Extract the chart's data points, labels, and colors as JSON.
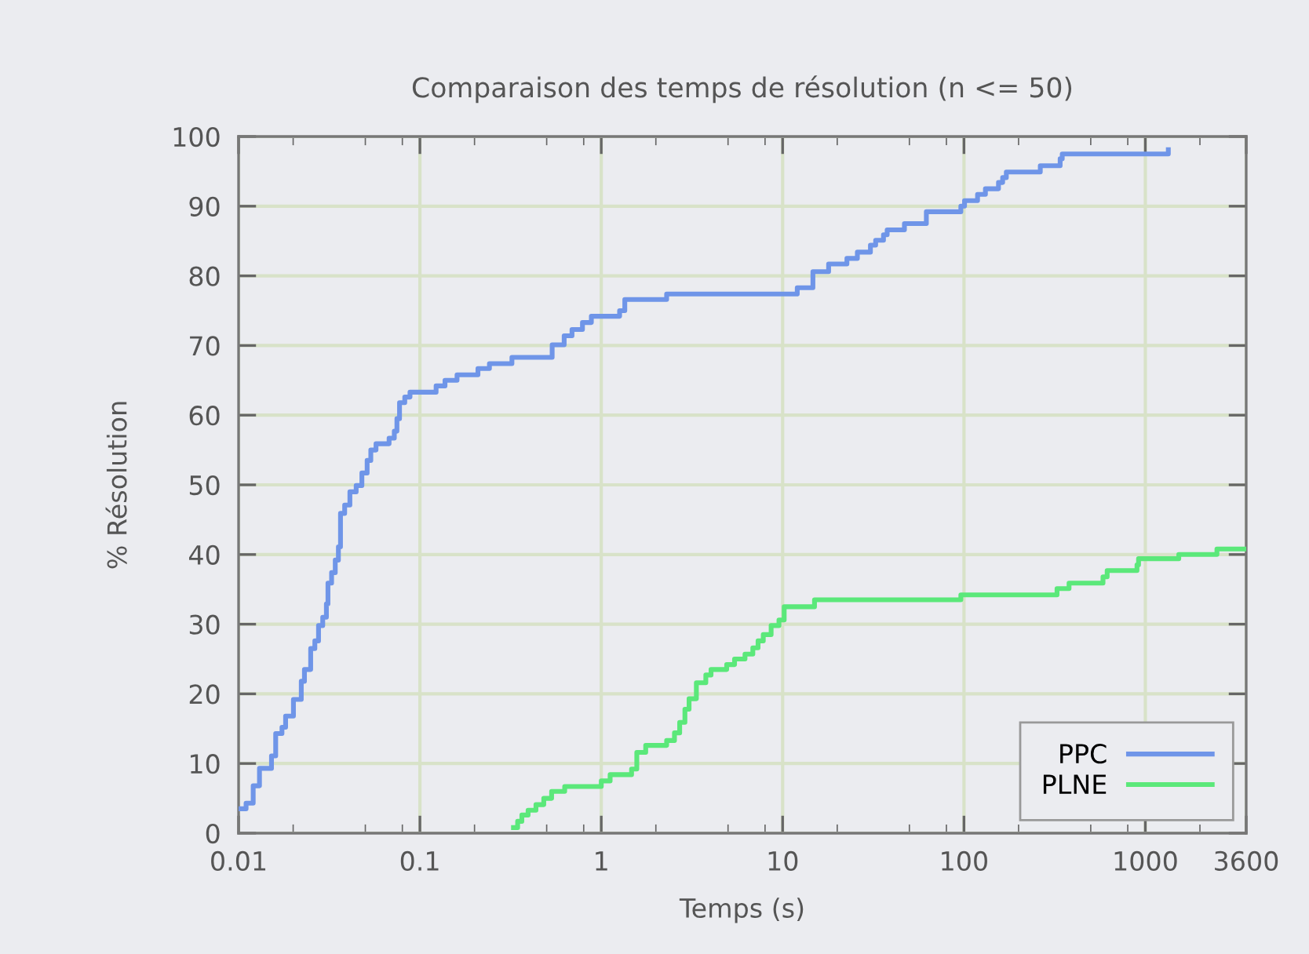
{
  "chart_data": {
    "type": "step",
    "title": "Comparaison des temps de résolution (n <= 50)",
    "xlabel": "Temps (s)",
    "ylabel": "% Résolution",
    "log": "x",
    "grid": true,
    "legend": "bottom right",
    "xlim": [
      0.01,
      3600
    ],
    "ylim": [
      0,
      100
    ],
    "xticks": [
      {
        "value": 0.01,
        "label": "0.01"
      },
      {
        "value": 0.02,
        "label": null
      },
      {
        "value": 0.05,
        "label": null
      },
      {
        "value": 0.08,
        "label": null
      },
      {
        "value": 0.1,
        "label": "0.1"
      },
      {
        "value": 0.2,
        "label": null
      },
      {
        "value": 0.5,
        "label": null
      },
      {
        "value": 0.8,
        "label": null
      },
      {
        "value": 1,
        "label": "1"
      },
      {
        "value": 2,
        "label": null
      },
      {
        "value": 5,
        "label": null
      },
      {
        "value": 8,
        "label": null
      },
      {
        "value": 10,
        "label": "10"
      },
      {
        "value": 20,
        "label": null
      },
      {
        "value": 50,
        "label": null
      },
      {
        "value": 80,
        "label": null
      },
      {
        "value": 100,
        "label": "100"
      },
      {
        "value": 200,
        "label": null
      },
      {
        "value": 500,
        "label": null
      },
      {
        "value": 800,
        "label": null
      },
      {
        "value": 1000,
        "label": "1000"
      },
      {
        "value": 2000,
        "label": null
      },
      {
        "value": 3600,
        "label": "3600"
      }
    ],
    "yticks": [
      0,
      10,
      20,
      30,
      40,
      50,
      60,
      70,
      80,
      90,
      100
    ],
    "series": [
      {
        "name": "PPC",
        "color": "#6f95e8",
        "x": [
          0.01,
          0.011,
          0.01204,
          0.01304,
          0.01519,
          0.01602,
          0.01735,
          0.01817,
          0.02007,
          0.02217,
          0.02308,
          0.02498,
          0.02634,
          0.0276,
          0.02911,
          0.0305,
          0.03111,
          0.03258,
          0.03413,
          0.03552,
          0.03648,
          0.03846,
          0.0411,
          0.04451,
          0.04786,
          0.05116,
          0.0536,
          0.05726,
          0.06761,
          0.07224,
          0.07467,
          0.07719,
          0.0825,
          0.08816,
          0.1228,
          0.1375,
          0.1602,
          0.2089,
          0.2417,
          0.3216,
          0.536,
          0.6243,
          0.6896,
          0.7876,
          0.8816,
          1.262,
          1.348,
          2.293,
          12.04,
          14.69,
          17.93,
          22.62,
          25.83,
          30.49,
          32.58,
          35.99,
          37.71,
          46.95,
          62.02,
          96.1,
          100.7,
          118.8,
          131.3,
          155.0,
          163.4,
          171.2,
          263.5,
          339.1,
          348.2,
          1339
        ],
        "values": [
          3.5,
          4.3,
          6.8,
          9.3,
          11.1,
          14.3,
          15.2,
          16.8,
          19.2,
          21.8,
          23.5,
          26.5,
          27.6,
          29.8,
          31.0,
          32.9,
          35.9,
          37.4,
          39.2,
          41.1,
          45.9,
          47.1,
          49.0,
          49.9,
          51.7,
          53.5,
          55.0,
          55.9,
          56.7,
          57.7,
          59.5,
          61.8,
          62.6,
          63.3,
          64.2,
          65.0,
          65.8,
          66.7,
          67.4,
          68.3,
          70.1,
          71.4,
          72.3,
          73.3,
          74.2,
          75.0,
          76.6,
          77.4,
          78.3,
          80.6,
          81.7,
          82.5,
          83.4,
          84.4,
          85.1,
          85.9,
          86.6,
          87.5,
          89.2,
          90.0,
          90.8,
          91.7,
          92.5,
          93.4,
          94.1,
          94.9,
          95.8,
          96.8,
          97.5,
          98.1
        ]
      },
      {
        "name": "PLNE",
        "color": "#5be87a",
        "x": [
          0.328,
          0.3458,
          0.3648,
          0.3949,
          0.4363,
          0.4819,
          0.5323,
          0.6285,
          1,
          1.119,
          1.469,
          1.57,
          1.758,
          2.293,
          2.533,
          2.706,
          2.892,
          3.049,
          3.345,
          3.771,
          4.029,
          4.915,
          5.432,
          6.202,
          6.85,
          7.321,
          7.822,
          8.642,
          9.546,
          10.2,
          14.99,
          96.1,
          325.9,
          379.6,
          584.2,
          616.0,
          899.5,
          917.5,
          1529,
          2482,
          3600
        ],
        "values": [
          0.8,
          1.7,
          2.6,
          3.3,
          4.1,
          5.0,
          6.0,
          6.7,
          7.5,
          8.4,
          9.2,
          11.6,
          12.6,
          13.3,
          14.4,
          15.9,
          17.8,
          19.3,
          21.6,
          22.7,
          23.5,
          24.2,
          25.0,
          25.7,
          26.6,
          27.6,
          28.5,
          29.8,
          30.6,
          32.5,
          33.5,
          34.2,
          35.1,
          35.9,
          36.8,
          37.7,
          38.5,
          39.4,
          40.0,
          40.8,
          40.8
        ]
      }
    ]
  }
}
